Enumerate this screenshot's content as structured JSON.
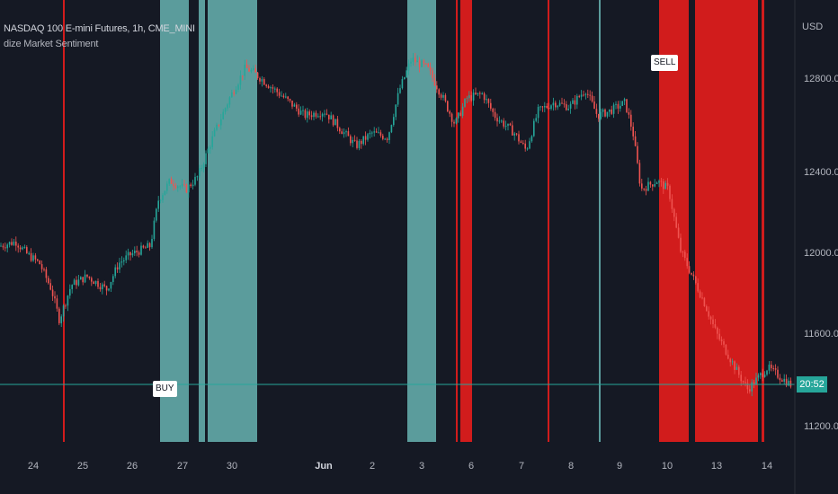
{
  "header": {
    "symbol_line": "NASDAQ 100 E-mini Futures, 1h, CME_MINI",
    "indicator_name": "dize Market Sentiment"
  },
  "price_axis": {
    "currency": "USD",
    "ticks": [
      "12800.00",
      "12400.00",
      "12000.00",
      "11600.00",
      "11200.00"
    ],
    "last_price_label": "20:52"
  },
  "time_axis": {
    "labels": [
      "24",
      "25",
      "26",
      "27",
      "30",
      "Jun",
      "2",
      "3",
      "6",
      "7",
      "8",
      "9",
      "10",
      "13",
      "14"
    ]
  },
  "signals": {
    "buy": "BUY",
    "sell": "SELL"
  },
  "colors": {
    "background": "#151924",
    "bullish_band": "#5b9c9c",
    "bearish_band": "#d11c1c",
    "candle_up": "#26a69a",
    "candle_down": "#ef5350",
    "current_price_line": "#26a69a"
  },
  "chart_data": {
    "type": "candlestick",
    "y_range": [
      11200,
      12950
    ],
    "price_path": [
      [
        0,
        12040
      ],
      [
        0.02,
        12060
      ],
      [
        0.035,
        12000
      ],
      [
        0.05,
        11960
      ],
      [
        0.065,
        11840
      ],
      [
        0.075,
        11700
      ],
      [
        0.09,
        11860
      ],
      [
        0.11,
        11900
      ],
      [
        0.135,
        11840
      ],
      [
        0.15,
        11960
      ],
      [
        0.165,
        12000
      ],
      [
        0.19,
        12040
      ],
      [
        0.2,
        12250
      ],
      [
        0.215,
        12340
      ],
      [
        0.235,
        12300
      ],
      [
        0.25,
        12360
      ],
      [
        0.27,
        12550
      ],
      [
        0.29,
        12720
      ],
      [
        0.31,
        12860
      ],
      [
        0.32,
        12840
      ],
      [
        0.34,
        12780
      ],
      [
        0.36,
        12720
      ],
      [
        0.385,
        12640
      ],
      [
        0.41,
        12660
      ],
      [
        0.43,
        12580
      ],
      [
        0.45,
        12500
      ],
      [
        0.47,
        12560
      ],
      [
        0.49,
        12540
      ],
      [
        0.505,
        12760
      ],
      [
        0.52,
        12900
      ],
      [
        0.54,
        12860
      ],
      [
        0.56,
        12720
      ],
      [
        0.575,
        12600
      ],
      [
        0.59,
        12720
      ],
      [
        0.61,
        12740
      ],
      [
        0.625,
        12640
      ],
      [
        0.65,
        12560
      ],
      [
        0.665,
        12480
      ],
      [
        0.68,
        12660
      ],
      [
        0.7,
        12700
      ],
      [
        0.72,
        12680
      ],
      [
        0.74,
        12760
      ],
      [
        0.755,
        12640
      ],
      [
        0.77,
        12660
      ],
      [
        0.79,
        12700
      ],
      [
        0.8,
        12560
      ],
      [
        0.81,
        12300
      ],
      [
        0.83,
        12340
      ],
      [
        0.845,
        12300
      ],
      [
        0.86,
        12020
      ],
      [
        0.875,
        11900
      ],
      [
        0.89,
        11780
      ],
      [
        0.905,
        11640
      ],
      [
        0.92,
        11540
      ],
      [
        0.935,
        11440
      ],
      [
        0.945,
        11380
      ],
      [
        0.955,
        11420
      ],
      [
        0.97,
        11480
      ],
      [
        1.0,
        11400
      ]
    ],
    "last_price": "20:52"
  }
}
